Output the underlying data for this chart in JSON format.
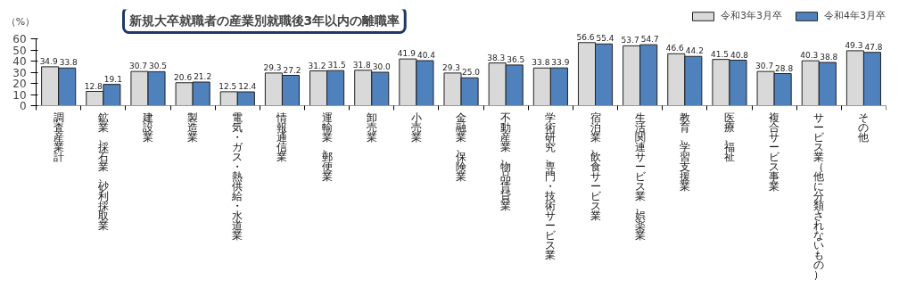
{
  "chart_data": {
    "type": "bar",
    "title": "新規大卒就職者の産業別就職後3年以内の離職率",
    "ylabel": "（%）",
    "categories": [
      "調査産業計",
      "鉱業、採石業、砂利採取業",
      "建設業",
      "製造業",
      "電気・ガス・熱供給・水道業",
      "情報通信業",
      "運輸業、郵便業",
      "卸売業",
      "小売業",
      "金融業、保険業",
      "不動産業、物品賃貸業",
      "学術研究、専門・技術サービス業",
      "宿泊業、飲食サービス業",
      "生活関連サービス業、娯楽業",
      "教育、学習支援業",
      "医療、福祉",
      "複合サービス事業",
      "サービス業（他に分類されないもの）",
      "その他"
    ],
    "series": [
      {
        "name": "令和3年3月卒",
        "color": "#d9d9d9",
        "values": [
          34.9,
          12.8,
          30.7,
          20.6,
          12.5,
          29.3,
          31.2,
          31.8,
          41.9,
          29.3,
          38.3,
          33.8,
          56.6,
          53.7,
          46.6,
          41.5,
          30.7,
          40.3,
          49.3
        ],
        "value_labels": [
          "34.9",
          "12.8",
          "30.7",
          "20.6",
          "12.5",
          "29.3",
          "31.2",
          "31.8",
          "41.9",
          "29.3",
          "38.3",
          "33.8",
          "56.6",
          "53.7",
          "46.6",
          "41.5",
          "30.7",
          "40.3",
          "49.3"
        ]
      },
      {
        "name": "令和4年3月卒",
        "color": "#4f81bd",
        "values": [
          33.8,
          19.1,
          30.5,
          21.2,
          12.4,
          27.2,
          31.5,
          30.0,
          40.4,
          25.0,
          36.5,
          33.9,
          55.4,
          54.7,
          44.2,
          40.8,
          28.8,
          38.8,
          47.8
        ],
        "value_labels": [
          "33.8",
          "19.1",
          "30.5",
          "21.2",
          "12.4",
          "27.2",
          "31.5",
          "30.0",
          "40.4",
          "25.0",
          "36.5",
          "33.9",
          "55.4",
          "54.7",
          "44.2",
          "40.8",
          "28.8",
          "38.8",
          "47.8"
        ]
      }
    ],
    "ylim": [
      0,
      60
    ],
    "yticks": [
      0,
      10,
      20,
      30,
      40,
      50,
      60
    ],
    "legend": "top right",
    "grid": false
  }
}
